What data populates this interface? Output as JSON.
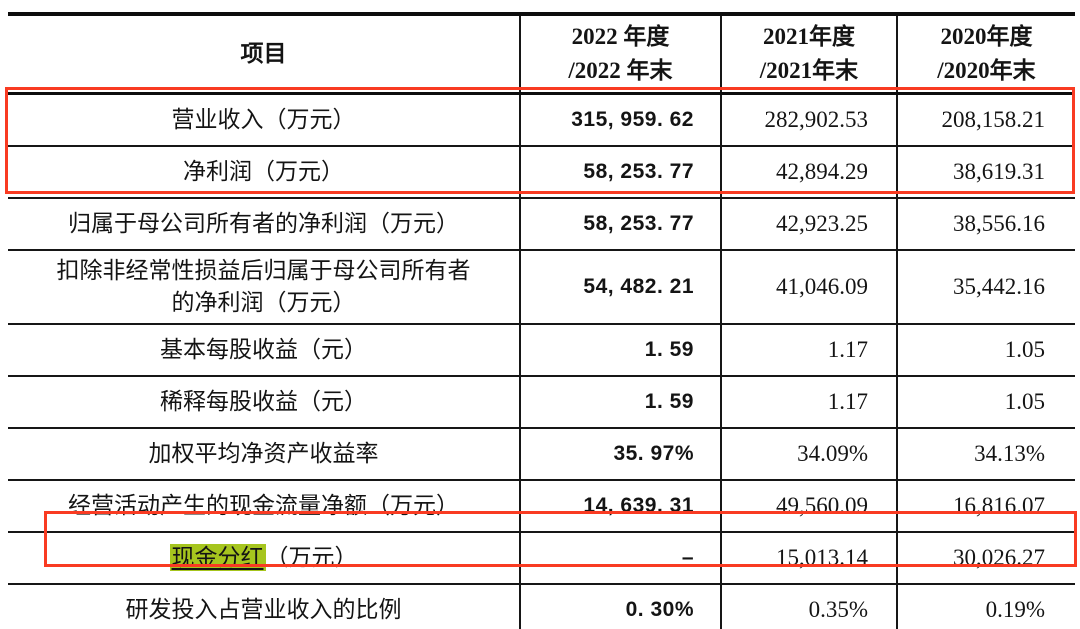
{
  "table": {
    "headers": {
      "item": "项目",
      "y2022": "2022 年度\n/2022 年末",
      "y2021": "2021年度\n/2021年末",
      "y2020": "2020年度\n/2020年末"
    },
    "rows": [
      {
        "label": "营业收入（万元）",
        "v2022": "315, 959. 62",
        "v2021": "282,902.53",
        "v2020": "208,158.21"
      },
      {
        "label": "净利润（万元）",
        "v2022": "58, 253. 77",
        "v2021": "42,894.29",
        "v2020": "38,619.31"
      },
      {
        "label": "归属于母公司所有者的净利润（万元）",
        "v2022": "58, 253. 77",
        "v2021": "42,923.25",
        "v2020": "38,556.16"
      },
      {
        "label": "扣除非经常性损益后归属于母公司所有者\n的净利润（万元）",
        "v2022": "54, 482. 21",
        "v2021": "41,046.09",
        "v2020": "35,442.16"
      },
      {
        "label": "基本每股收益（元）",
        "v2022": "1. 59",
        "v2021": "1.17",
        "v2020": "1.05"
      },
      {
        "label": "稀释每股收益（元）",
        "v2022": "1. 59",
        "v2021": "1.17",
        "v2020": "1.05"
      },
      {
        "label": "加权平均净资产收益率",
        "v2022": "35. 97%",
        "v2021": "34.09%",
        "v2020": "34.13%"
      },
      {
        "label": "经营活动产生的现金流量净额（万元）",
        "v2022": "14, 639. 31",
        "v2021": "49,560.09",
        "v2020": "16,816.07"
      },
      {
        "label_highlight": "现金分红",
        "label_suffix": "（万元）",
        "v2022": "–",
        "v2021": "15,013.14",
        "v2020": "30,026.27"
      },
      {
        "label": "研发投入占营业收入的比例",
        "v2022": "0. 30%",
        "v2021": "0.35%",
        "v2020": "0.19%"
      }
    ]
  },
  "annotations": {
    "red_box_color": "#f93b22",
    "highlight_color": "#a6c51e",
    "red_box_1_rows": "营业收入 / 净利润",
    "red_box_2_row": "现金分红"
  }
}
